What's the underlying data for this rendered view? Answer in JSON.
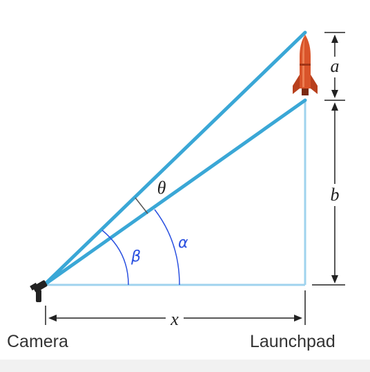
{
  "labels": {
    "camera": "Camera",
    "launchpad": "Launchpad",
    "x": "x",
    "a": "a",
    "b": "b",
    "theta": "θ",
    "alpha": "α",
    "beta": "β"
  },
  "colors": {
    "line_blue": "#3aa7d6",
    "light_blue": "#9fd3ee",
    "handwriting_blue": "#2a50e0",
    "rocket_red": "#d9542a",
    "dark": "#222222"
  },
  "icons": [
    "camera-icon",
    "rocket-icon"
  ]
}
